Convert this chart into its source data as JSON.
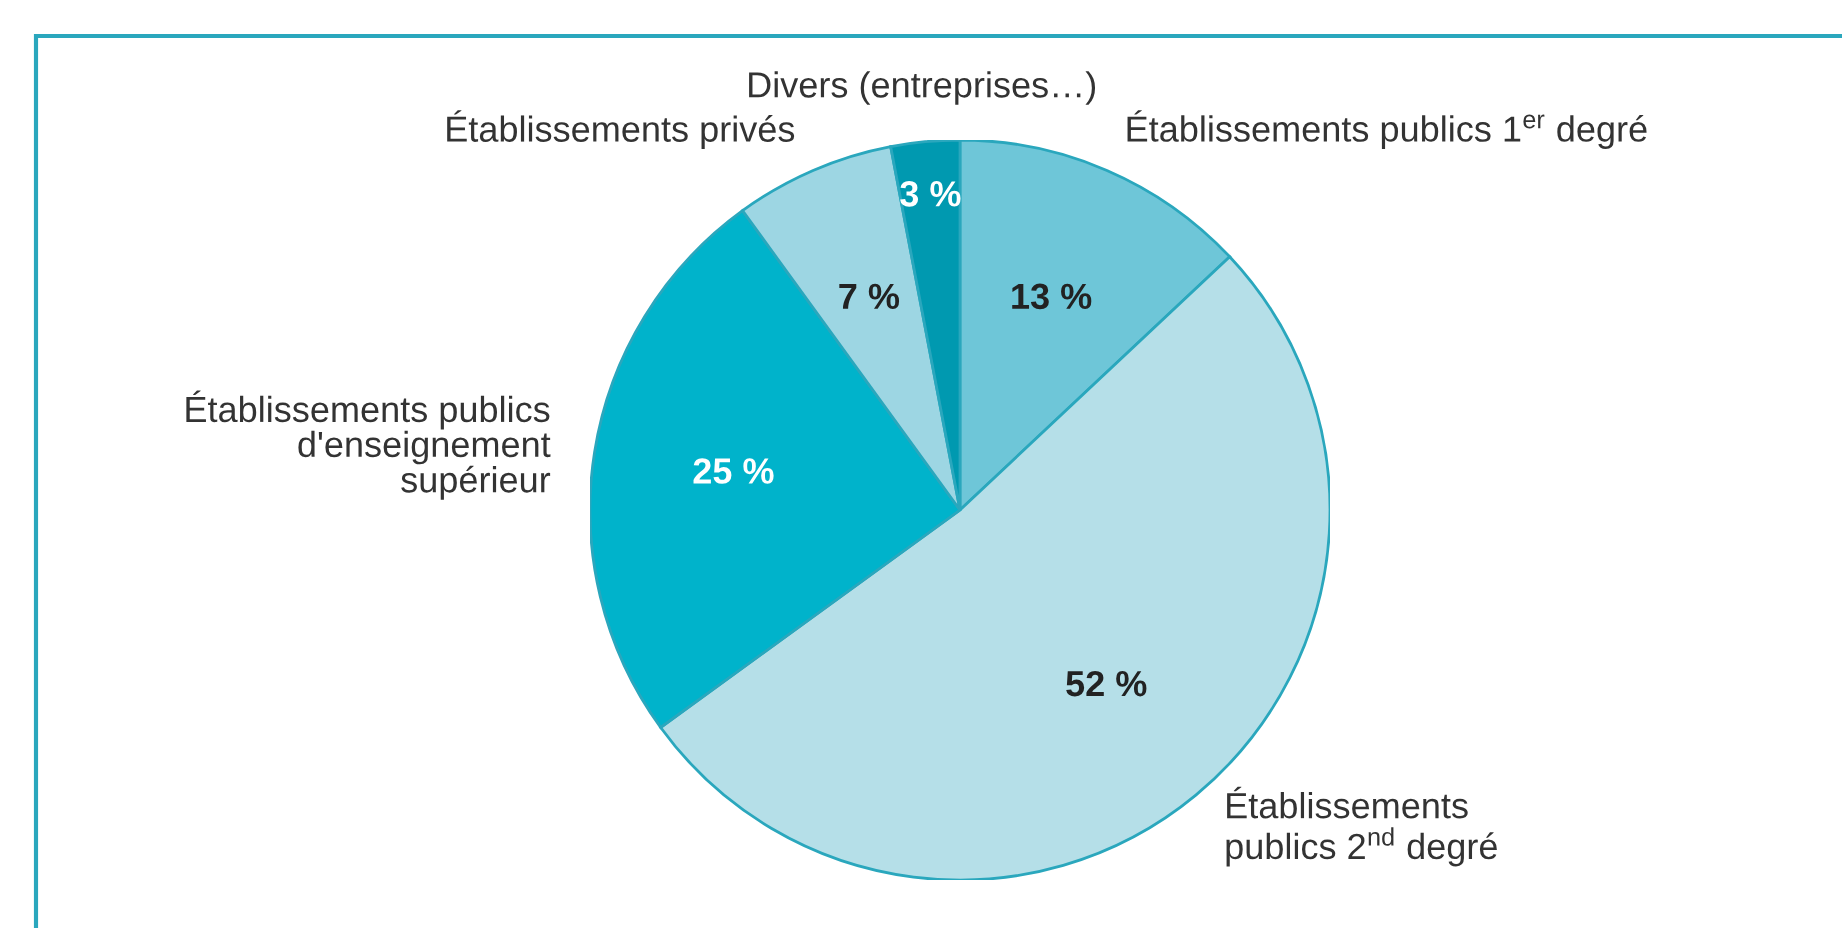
{
  "chart_data": {
    "type": "pie",
    "categories": [
      "Établissements publics 1$^{er}$ degré",
      "Établissements\npublics 2$^{nd}$ degré",
      "Établissements publics\nd'enseignement\nsupérieur",
      "Établissements privés",
      "Divers (entreprises…)"
    ],
    "values": [
      13,
      52,
      25,
      7,
      3
    ],
    "value_labels": [
      "13 %",
      "52 %",
      "25 %",
      "7 %",
      "3 %"
    ],
    "colors": [
      "#6ec6d8",
      "#b5dfe8",
      "#00b3cb",
      "#9dd6e3",
      "#0099b0"
    ],
    "legend": false
  }
}
